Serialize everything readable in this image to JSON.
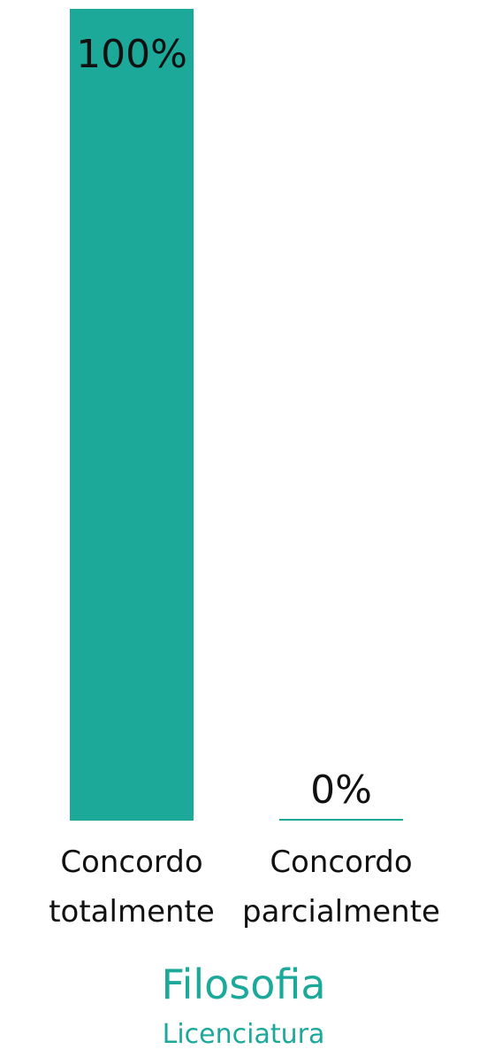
{
  "chart_data": {
    "type": "bar",
    "categories": [
      [
        "Concordo",
        "totalmente"
      ],
      [
        "Concordo",
        "parcialmente"
      ]
    ],
    "values": [
      100,
      0
    ],
    "value_labels": [
      "100%",
      "0%"
    ],
    "ylim": [
      0,
      100
    ],
    "bar_color": "#1da99a",
    "grid": false,
    "title": "Filosofia",
    "subtitle": "Licenciatura"
  }
}
